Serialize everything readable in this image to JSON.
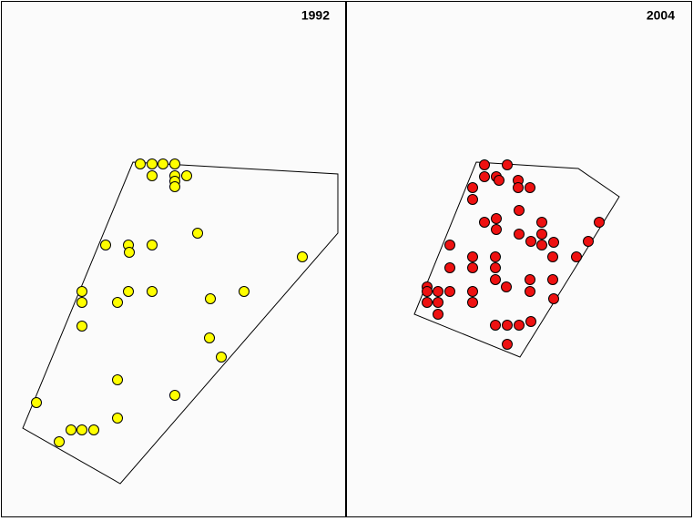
{
  "chart_data": [
    {
      "type": "scatter",
      "title": "1992",
      "color": "#ffff00",
      "xlim": [
        0,
        378
      ],
      "ylim": [
        565,
        0
      ],
      "x": [
        152,
        165,
        177,
        190,
        165,
        190,
        203,
        190,
        190,
        215,
        114,
        139,
        165,
        140,
        330,
        88,
        139,
        165,
        266,
        88,
        127,
        229,
        88,
        228,
        241,
        127,
        190,
        38,
        127,
        76,
        88,
        101,
        63
      ],
      "y": [
        178,
        178,
        178,
        178,
        191,
        191,
        191,
        197,
        203,
        254,
        267,
        267,
        267,
        275,
        280,
        318,
        318,
        318,
        318,
        330,
        330,
        326,
        356,
        369,
        390,
        415,
        432,
        440,
        457,
        470,
        470,
        470,
        483
      ],
      "hull_x": [
        144,
        369,
        369,
        130,
        23
      ],
      "hull_y": [
        176,
        189,
        254,
        529,
        468
      ]
    },
    {
      "type": "scatter",
      "title": "2004",
      "color": "#ee1111",
      "xlim": [
        0,
        378
      ],
      "ylim": [
        565,
        0
      ],
      "x": [
        151,
        176,
        151,
        164,
        167,
        188,
        188,
        201,
        138,
        138,
        189,
        151,
        164,
        164,
        214,
        277,
        189,
        214,
        202,
        214,
        227,
        113,
        265,
        138,
        163,
        252,
        226,
        113,
        138,
        163,
        163,
        201,
        226,
        88,
        88,
        100,
        113,
        138,
        175,
        201,
        88,
        100,
        138,
        227,
        100,
        163,
        176,
        189,
        202,
        176
      ],
      "y": [
        179,
        179,
        192,
        192,
        196,
        196,
        204,
        204,
        204,
        217,
        229,
        242,
        238,
        250,
        242,
        242,
        255,
        255,
        263,
        267,
        264,
        267,
        263,
        280,
        280,
        280,
        280,
        292,
        292,
        292,
        305,
        305,
        305,
        313,
        318,
        318,
        318,
        318,
        313,
        318,
        330,
        330,
        330,
        326,
        343,
        355,
        355,
        355,
        351,
        376
      ],
      "hull_x": [
        142,
        254,
        299,
        190,
        74
      ],
      "hull_y": [
        176,
        183,
        214,
        390,
        343
      ]
    }
  ]
}
